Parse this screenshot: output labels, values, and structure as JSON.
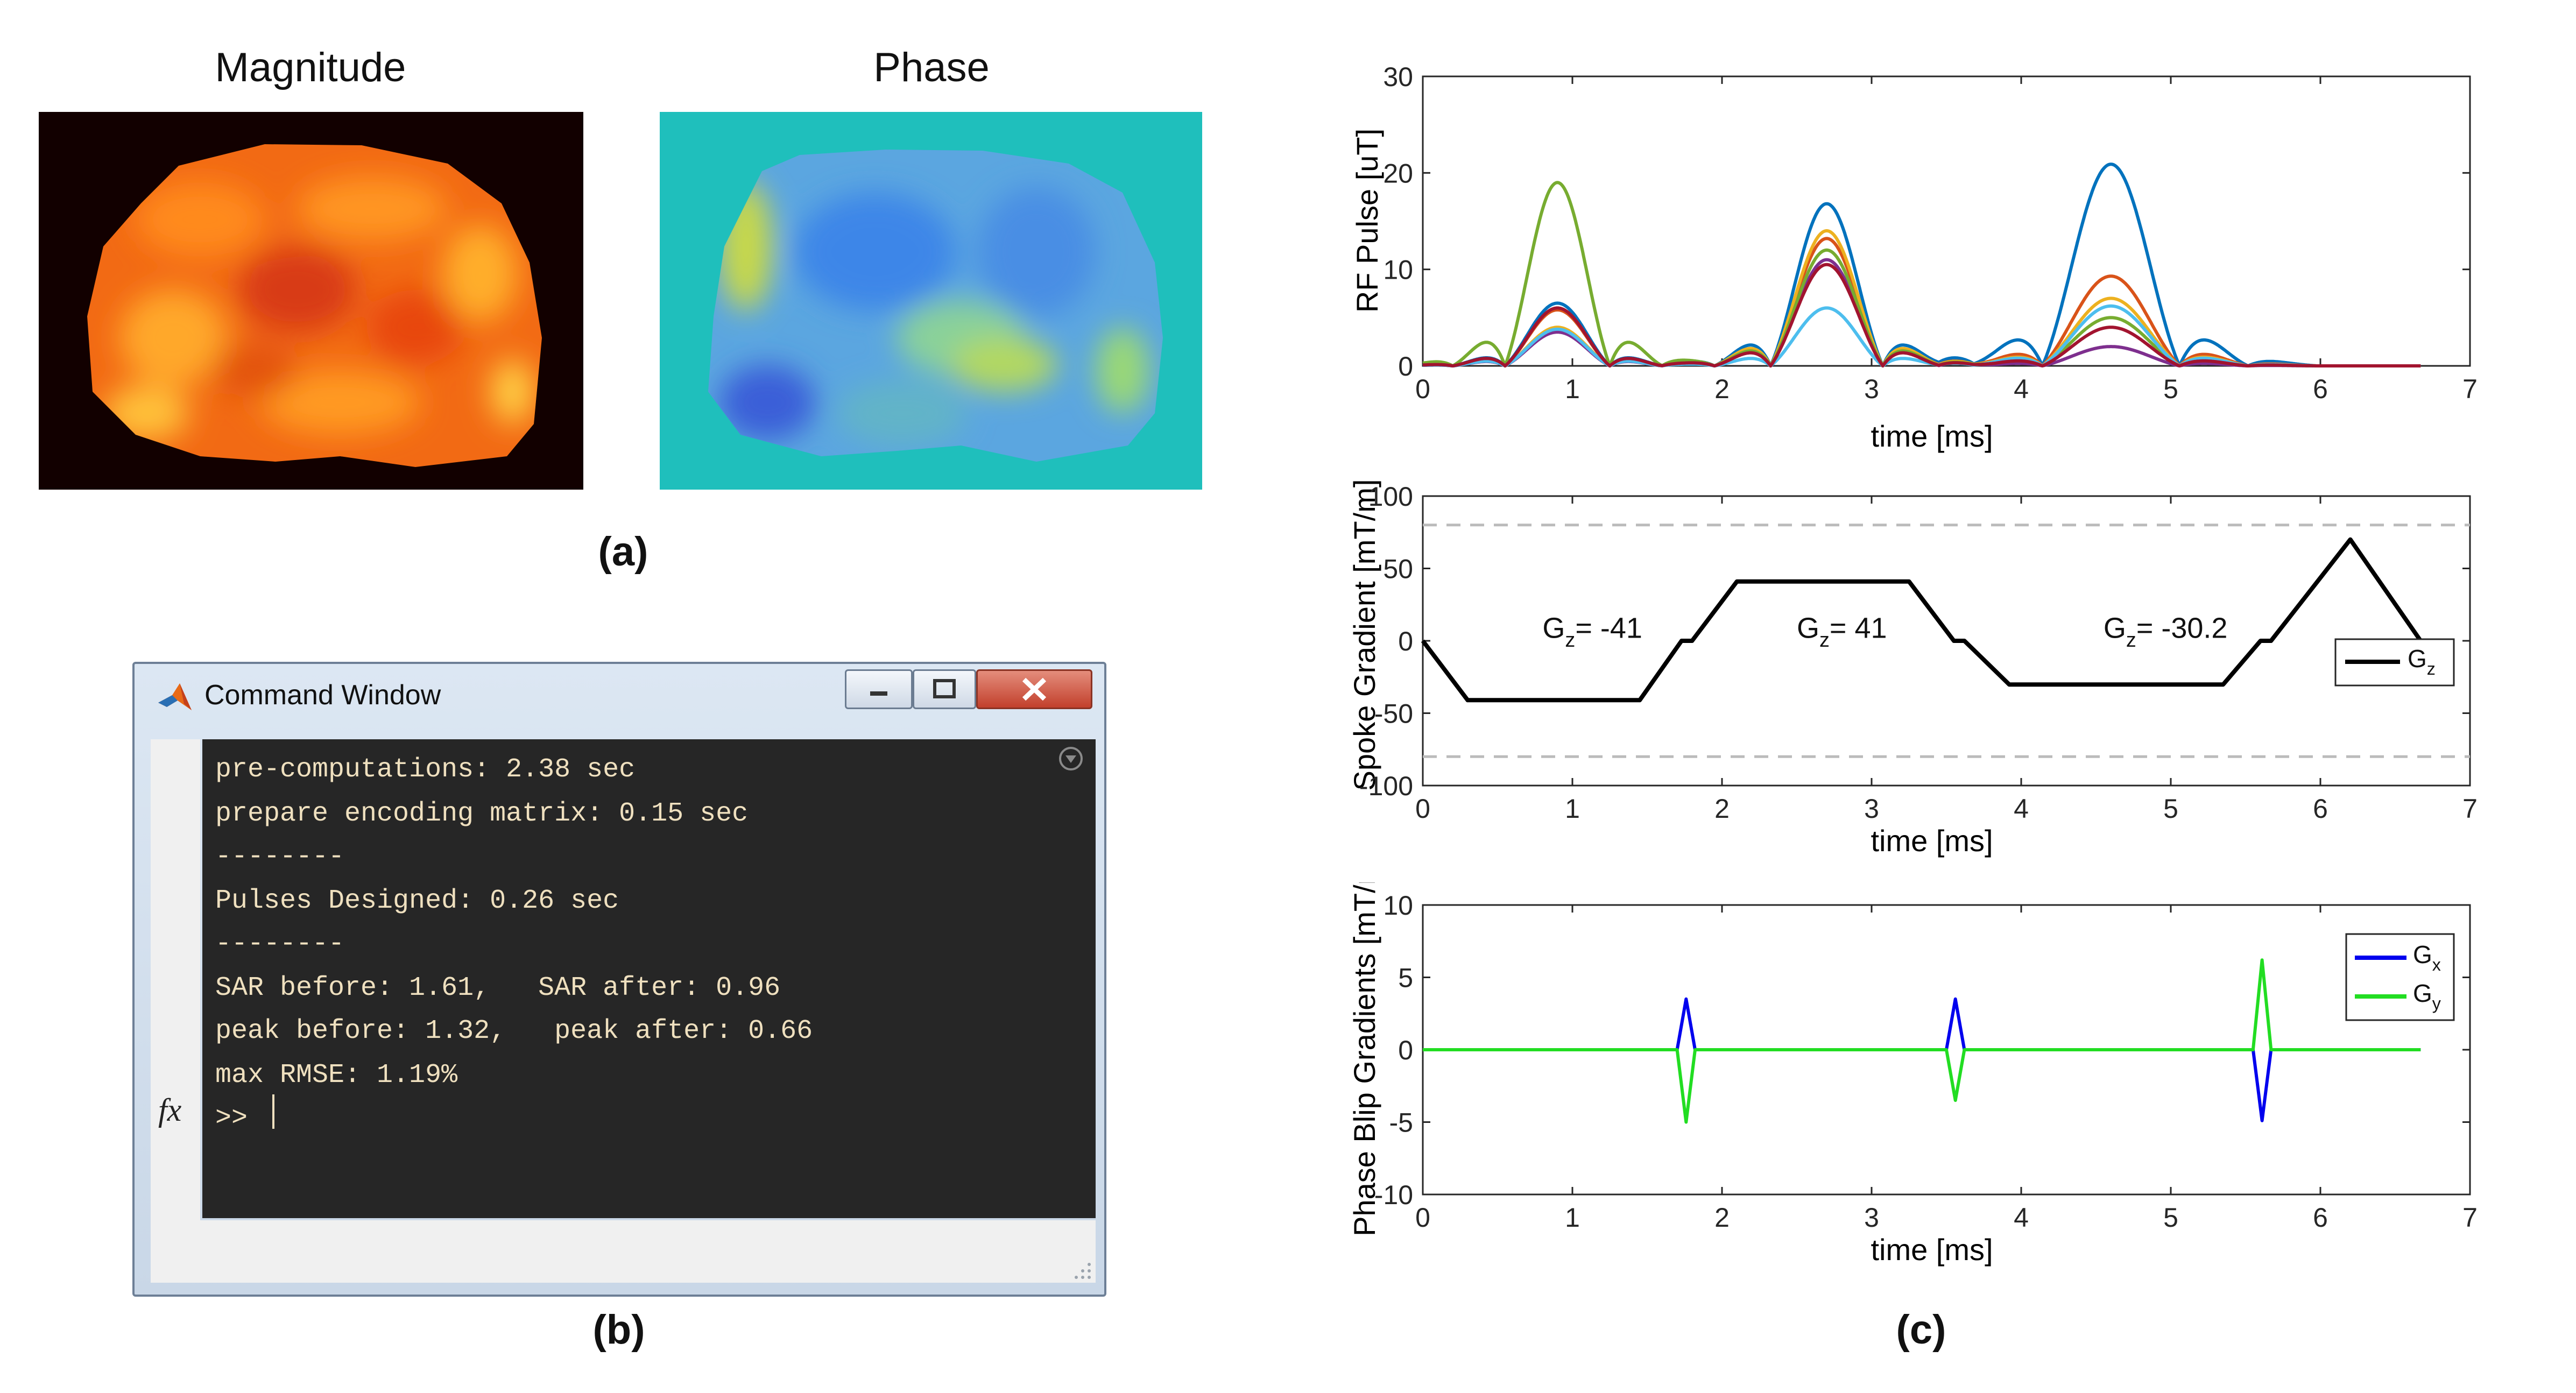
{
  "panel_a": {
    "magnitude_title": "Magnitude",
    "phase_title": "Phase",
    "label": "(a)"
  },
  "panel_b": {
    "window_title": "Command Window",
    "lines": [
      "pre-computations: 2.38 sec",
      "prepare encoding matrix: 0.15 sec",
      "--------",
      "Pulses Designed: 0.26 sec",
      "--------",
      "SAR before: 1.61,   SAR after: 0.96",
      "peak before: 1.32,   peak after: 0.66",
      "max RMSE: 1.19%"
    ],
    "prompt": ">>",
    "fx_glyph": "fx",
    "label": "(b)"
  },
  "panel_c": {
    "label": "(c)"
  },
  "icons": [
    "matlab-icon",
    "minimize-icon",
    "maximize-icon",
    "close-icon",
    "collapse-icon",
    "fx-icon",
    "resize-grip-icon"
  ],
  "colors": {
    "cmd_background": "#262626",
    "cmd_text": "#efe0bf",
    "gz": "#000000",
    "gx": "#0000ee",
    "gy": "#22dd22",
    "limit_dashed": "#bbbbbb"
  },
  "chart_data": [
    {
      "type": "line",
      "title": "",
      "xlabel": "time [ms]",
      "ylabel": "RF Pulse [uT]",
      "xlim": [
        0,
        7
      ],
      "ylim": [
        0,
        30
      ],
      "xticks": [
        0,
        1,
        2,
        3,
        4,
        5,
        6,
        7
      ],
      "yticks": [
        0,
        10,
        20,
        30
      ],
      "grid": false,
      "spokes": [
        {
          "center": 0.9,
          "half_width": 0.42
        },
        {
          "center": 2.7,
          "half_width": 0.45
        },
        {
          "center": 4.6,
          "half_width": 0.55
        }
      ],
      "series": [
        {
          "color": "#0072BD",
          "peaks": [
            6.5,
            16.8,
            20.9
          ]
        },
        {
          "color": "#D95319",
          "peaks": [
            5.8,
            13.2,
            9.3
          ]
        },
        {
          "color": "#EDB120",
          "peaks": [
            4.0,
            14.0,
            7.0
          ]
        },
        {
          "color": "#7E2F8E",
          "peaks": [
            3.5,
            11.0,
            2.0
          ]
        },
        {
          "color": "#77AC30",
          "peaks": [
            19.0,
            12.0,
            5.0
          ]
        },
        {
          "color": "#4DBEEE",
          "peaks": [
            3.8,
            6.0,
            6.2
          ]
        },
        {
          "color": "#A2142F",
          "peaks": [
            6.0,
            10.5,
            4.0
          ]
        }
      ]
    },
    {
      "type": "line",
      "title": "",
      "xlabel": "time [ms]",
      "ylabel": "Spoke Gradient [mT/m]",
      "xlim": [
        0,
        7
      ],
      "ylim": [
        -100,
        100
      ],
      "xticks": [
        0,
        1,
        2,
        3,
        4,
        5,
        6,
        7
      ],
      "yticks": [
        -100,
        -50,
        0,
        50,
        100
      ],
      "grid": false,
      "legend": {
        "position": "right",
        "entries": [
          "G_z"
        ],
        "label_main": "G",
        "label_sub": "z"
      },
      "limit_lines": [
        80,
        -80
      ],
      "annotations": [
        {
          "main": "G",
          "sub": "z",
          "text": "= -41",
          "x": 0.8,
          "y": 2
        },
        {
          "main": "G",
          "sub": "z",
          "text": "= 41",
          "x": 2.5,
          "y": 2
        },
        {
          "main": "G",
          "sub": "z",
          "text": "= -30.2",
          "x": 4.55,
          "y": 2
        }
      ],
      "series": [
        {
          "name": "G_z",
          "color": "#000000",
          "x": [
            0,
            0.3,
            1.45,
            1.73,
            1.76,
            1.8,
            2.1,
            3.25,
            3.55,
            3.58,
            3.62,
            3.92,
            5.35,
            5.6,
            5.63,
            5.67,
            6.2,
            6.67
          ],
          "y": [
            0,
            -41,
            -41,
            0,
            0,
            0,
            41,
            41,
            0,
            0,
            0,
            -30.2,
            -30.2,
            0,
            0,
            0,
            70,
            0
          ]
        }
      ]
    },
    {
      "type": "line",
      "title": "",
      "xlabel": "time [ms]",
      "ylabel": "Phase Blip Gradients [mT/m]",
      "xlim": [
        0,
        7
      ],
      "ylim": [
        -10,
        10
      ],
      "xticks": [
        0,
        1,
        2,
        3,
        4,
        5,
        6,
        7
      ],
      "yticks": [
        -10,
        -5,
        0,
        5,
        10
      ],
      "grid": false,
      "legend": {
        "position": "top-right",
        "entries": [
          "G_x",
          "G_y"
        ]
      },
      "series": [
        {
          "name": "G_x",
          "color": "#0000ee",
          "x": [
            0,
            1.7,
            1.76,
            1.82,
            3.5,
            3.56,
            3.62,
            5.55,
            5.61,
            5.67,
            6.67
          ],
          "y": [
            0,
            0,
            3.5,
            0,
            0,
            3.5,
            0,
            0,
            -4.9,
            0,
            0
          ]
        },
        {
          "name": "G_y",
          "color": "#22dd22",
          "x": [
            0,
            1.7,
            1.76,
            1.82,
            3.5,
            3.56,
            3.62,
            5.55,
            5.61,
            5.67,
            6.67
          ],
          "y": [
            0,
            0,
            -5.0,
            0,
            0,
            -3.5,
            0,
            0,
            6.2,
            0,
            0
          ]
        }
      ]
    }
  ]
}
